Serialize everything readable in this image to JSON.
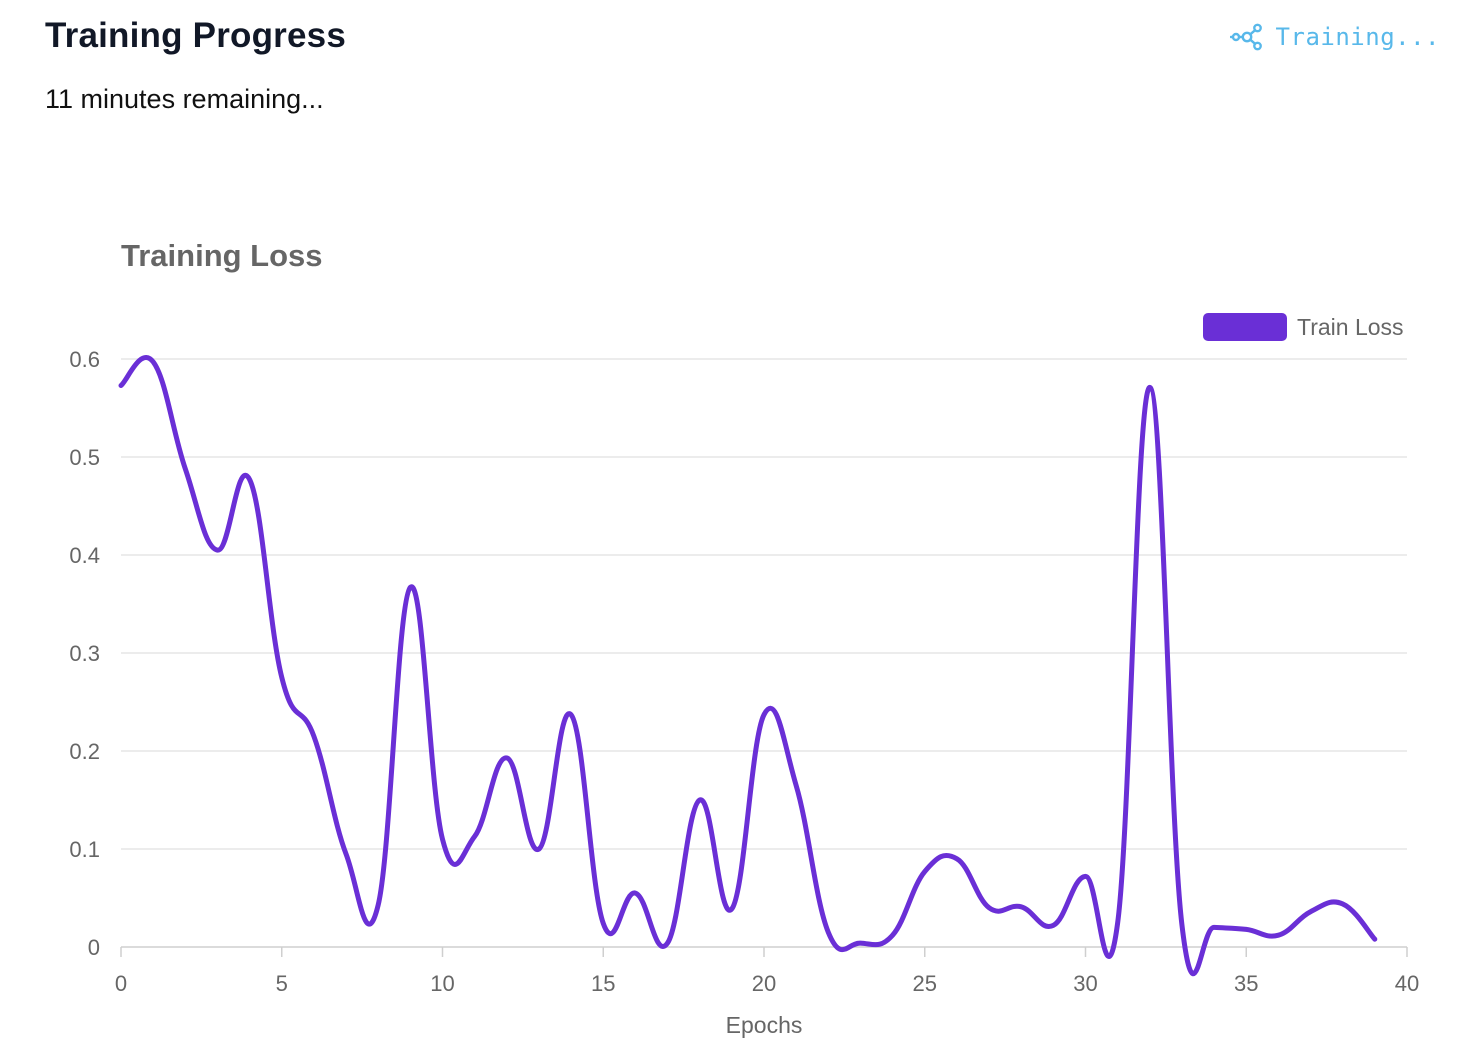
{
  "header": {
    "title": "Training Progress",
    "status": "Training...",
    "status_icon": "nodes-network-icon",
    "status_color": "#58b8ea"
  },
  "subtitle": "11 minutes remaining...",
  "chart_data": {
    "type": "line",
    "title": "Training Loss",
    "xlabel": "Epochs",
    "ylabel": "",
    "xlim": [
      0,
      40
    ],
    "ylim": [
      0,
      0.6
    ],
    "x_ticks": [
      0,
      5,
      10,
      15,
      20,
      25,
      30,
      35,
      40
    ],
    "y_ticks": [
      0,
      0.1,
      0.2,
      0.3,
      0.4,
      0.5,
      0.6
    ],
    "y_tick_labels": [
      "0",
      "0.1",
      "0.2",
      "0.3",
      "0.4",
      "0.5",
      "0.6"
    ],
    "grid": true,
    "legend": "top-right",
    "series": [
      {
        "name": "Train Loss",
        "color": "#6a2fd6",
        "x": [
          0,
          1,
          2,
          3,
          4,
          5,
          6,
          7,
          8,
          9,
          10,
          11,
          12,
          13,
          14,
          15,
          16,
          17,
          18,
          19,
          20,
          21,
          22,
          23,
          24,
          25,
          26,
          27,
          28,
          29,
          30,
          31,
          32,
          33,
          34,
          35,
          36,
          37,
          38,
          39
        ],
        "y": [
          0.573,
          0.597,
          0.488,
          0.405,
          0.477,
          0.275,
          0.215,
          0.095,
          0.043,
          0.367,
          0.11,
          0.113,
          0.193,
          0.1,
          0.237,
          0.024,
          0.055,
          0.004,
          0.15,
          0.039,
          0.237,
          0.165,
          0.015,
          0.004,
          0.012,
          0.077,
          0.09,
          0.04,
          0.041,
          0.022,
          0.072,
          0.025,
          0.571,
          0.022,
          0.02,
          0.018,
          0.012,
          0.036,
          0.044,
          0.008
        ]
      }
    ]
  }
}
